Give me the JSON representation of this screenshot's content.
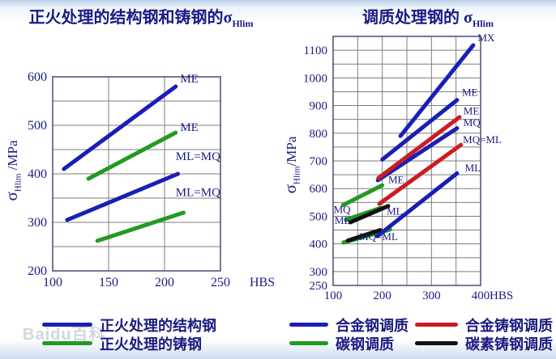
{
  "page": {
    "watermark": "Baidu百科"
  },
  "colors": {
    "navy": "#1b1b82",
    "blue": "#1a1fb4",
    "green": "#229a22",
    "red": "#cd1b22",
    "black": "#101010",
    "grid": "#7d7d7d",
    "axis": "#4a4a72"
  },
  "legend": {
    "left": [
      {
        "color": "blue",
        "label": "正火处理的结构钢"
      },
      {
        "color": "green",
        "label": "正火处理的铸钢"
      }
    ],
    "right": [
      {
        "color": "blue",
        "label": "合金钢调质"
      },
      {
        "color": "green",
        "label": "碳钢调质"
      },
      {
        "color": "red",
        "label": "合金铸钢调质"
      },
      {
        "color": "black",
        "label": "碳素铸钢调质"
      }
    ]
  },
  "chart_data": [
    {
      "type": "line",
      "title_main": "正火处理的结构钢和铸钢的σ",
      "title_sub": "Hlim",
      "ylabel": {
        "sigma": "σ",
        "sub": "Hlim",
        "unit": " /MPa"
      },
      "x_unit": "HBS",
      "x_range": [
        100,
        250
      ],
      "y_range": [
        200,
        600
      ],
      "x_ticks": [
        100,
        150,
        200,
        250
      ],
      "y_ticks": [
        200,
        300,
        400,
        500,
        600
      ],
      "grid_step_x": 50,
      "grid_step_y": 50,
      "series": [
        {
          "steel": "正火处理的结构钢",
          "grade": "ME",
          "color": "blue",
          "points": [
            [
              110,
              410
            ],
            [
              210,
              580
            ]
          ]
        },
        {
          "steel": "正火处理的铸钢",
          "grade": "ME",
          "color": "green",
          "points": [
            [
              132,
              390
            ],
            [
              210,
              485
            ]
          ]
        },
        {
          "steel": "正火处理的结构钢",
          "grade": "ML=MQ",
          "color": "blue",
          "points": [
            [
              113,
              305
            ],
            [
              212,
              400
            ]
          ]
        },
        {
          "steel": "正火处理的铸钢",
          "grade": "ML=MQ",
          "color": "green",
          "points": [
            [
              140,
              262
            ],
            [
              217,
              320
            ]
          ]
        }
      ],
      "annotations": [
        {
          "text": "ME",
          "x": 214,
          "y": 588
        },
        {
          "text": "ME",
          "x": 214,
          "y": 488
        },
        {
          "text": "ML=MQ",
          "x": 210,
          "y": 428
        },
        {
          "text": "ML=MQ",
          "x": 210,
          "y": 354
        }
      ]
    },
    {
      "type": "line",
      "title_main": "调质处理钢的 σ",
      "title_sub": "Hlim",
      "ylabel": {
        "sigma": "σ",
        "sub": "Hlim",
        "unit": "/MPa"
      },
      "x_unit": "HBS",
      "x_range": [
        100,
        400
      ],
      "y_range": [
        250,
        1150
      ],
      "x_ticks": [
        100,
        200,
        300,
        400
      ],
      "y_ticks": [
        250,
        300,
        400,
        500,
        600,
        700,
        800,
        900,
        1000,
        1100
      ],
      "grid_step_x": 50,
      "grid_step_y": 50,
      "series": [
        {
          "steel": "碳钢调质",
          "grade": "ME",
          "color": "green",
          "points": [
            [
              120,
              540
            ],
            [
              200,
              612
            ]
          ]
        },
        {
          "steel": "碳钢调质",
          "grade": "MQ",
          "color": "green",
          "points": [
            [
              126,
              487
            ],
            [
              196,
              530
            ]
          ]
        },
        {
          "steel": "碳钢调质",
          "grade": "ML",
          "color": "green",
          "points": [
            [
              121,
              405
            ],
            [
              216,
              452
            ]
          ]
        },
        {
          "steel": "碳素铸钢调质",
          "grade": "ME",
          "color": "black",
          "points": [
            [
              135,
              478
            ],
            [
              212,
              537
            ]
          ]
        },
        {
          "steel": "碳素铸钢调质",
          "grade": "MQ=ML",
          "color": "black",
          "points": [
            [
              130,
              412
            ],
            [
              196,
              450
            ]
          ]
        },
        {
          "steel": "合金钢调质",
          "grade": "MX",
          "color": "blue",
          "points": [
            [
              237,
              790
            ],
            [
              385,
              1118
            ]
          ]
        },
        {
          "steel": "合金钢调质",
          "grade": "ME",
          "color": "blue",
          "points": [
            [
              200,
              705
            ],
            [
              352,
              920
            ]
          ]
        },
        {
          "steel": "合金钢调质",
          "grade": "MQ",
          "color": "blue",
          "points": [
            [
              191,
              630
            ],
            [
              352,
              818
            ]
          ]
        },
        {
          "steel": "合金钢调质",
          "grade": "ML",
          "color": "blue",
          "points": [
            [
              190,
              428
            ],
            [
              352,
              655
            ]
          ]
        },
        {
          "steel": "合金铸钢调质",
          "grade": "ME",
          "color": "red",
          "points": [
            [
              192,
              638
            ],
            [
              357,
              858
            ]
          ]
        },
        {
          "steel": "合金铸钢调质",
          "grade": "MQ=ML",
          "color": "red",
          "points": [
            [
              194,
              545
            ],
            [
              360,
              758
            ]
          ]
        }
      ],
      "annotations": [
        {
          "text": "MX",
          "x": 394,
          "y": 1132
        },
        {
          "text": "ME",
          "x": 362,
          "y": 935
        },
        {
          "text": "ME",
          "x": 365,
          "y": 868
        },
        {
          "text": "MQ",
          "x": 365,
          "y": 826
        },
        {
          "text": "MQ=ML",
          "x": 364,
          "y": 764
        },
        {
          "text": "ML",
          "x": 368,
          "y": 662
        },
        {
          "text": "ME",
          "x": 212,
          "y": 620
        },
        {
          "text": "MQ",
          "x": 101,
          "y": 512
        },
        {
          "text": "ME",
          "x": 103,
          "y": 472
        },
        {
          "text": "ML",
          "x": 209,
          "y": 505
        },
        {
          "text": "MQ=ML",
          "x": 153,
          "y": 414
        }
      ]
    }
  ]
}
